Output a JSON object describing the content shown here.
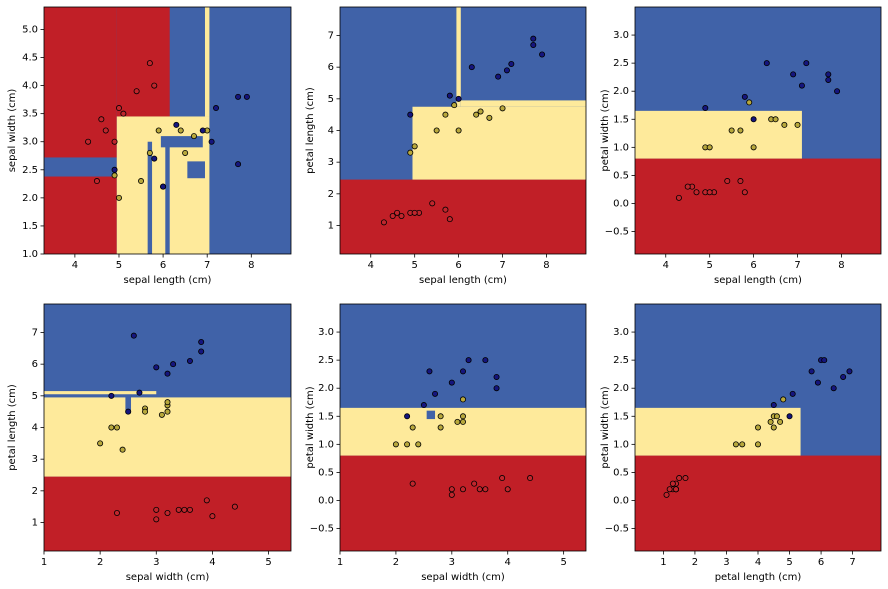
{
  "chart_data": [
    {
      "type": "scatter",
      "xlabel": "sepal length (cm)",
      "ylabel": "sepal width (cm)",
      "xlim": [
        3.3,
        8.9
      ],
      "ylim": [
        1.0,
        5.4
      ],
      "xticks": [
        4,
        5,
        6,
        7,
        8
      ],
      "yticks": [
        {
          "value": 1,
          "label": "1.0"
        },
        1.5,
        {
          "value": 2,
          "label": "2.0"
        },
        2.5,
        {
          "value": 3,
          "label": "3.0"
        },
        3.5,
        {
          "value": 4,
          "label": "4.0"
        },
        4.5,
        {
          "value": 5,
          "label": "5.0"
        }
      ],
      "regions": [
        {
          "xlim": [
            3.3,
            8.9
          ],
          "ylim": [
            1.0,
            5.4
          ],
          "color": "#4062a8"
        },
        {
          "xlim": [
            3.3,
            4.95
          ],
          "ylim": [
            1.0,
            5.4
          ],
          "color": "#c11f27"
        },
        {
          "xlim": [
            3.3,
            4.95
          ],
          "ylim": [
            2.38,
            2.72
          ],
          "color": "#4062a8"
        },
        {
          "xlim": [
            4.95,
            6.15
          ],
          "ylim": [
            3.45,
            5.4
          ],
          "color": "#c11f27"
        },
        {
          "xlim": [
            4.95,
            7.05
          ],
          "ylim": [
            1.0,
            3.45
          ],
          "color": "#feea9b"
        },
        {
          "xlim": [
            6.95,
            7.05
          ],
          "ylim": [
            3.45,
            5.4
          ],
          "color": "#feea9b"
        },
        {
          "xlim": [
            5.65,
            5.75
          ],
          "ylim": [
            1.0,
            3.0
          ],
          "color": "#4062a8"
        },
        {
          "xlim": [
            6.05,
            6.15
          ],
          "ylim": [
            1.0,
            3.0
          ],
          "color": "#4062a8"
        },
        {
          "xlim": [
            6.55,
            6.95
          ],
          "ylim": [
            2.35,
            2.65
          ],
          "color": "#4062a8"
        },
        {
          "xlim": [
            5.95,
            6.9
          ],
          "ylim": [
            2.9,
            3.1
          ],
          "color": "#4062a8"
        }
      ],
      "series": [
        {
          "color": "#c0262d",
          "x": [
            5.1,
            4.9,
            4.7,
            5.0,
            5.4,
            4.6,
            5.7,
            4.3,
            5.8,
            4.5
          ],
          "y": [
            3.5,
            3.0,
            3.2,
            3.6,
            3.9,
            3.4,
            4.4,
            3.0,
            4.0,
            2.3
          ]
        },
        {
          "color": "#b8a83c",
          "x": [
            7.0,
            6.4,
            5.5,
            6.5,
            5.7,
            4.9,
            5.0,
            6.0,
            6.7,
            5.9
          ],
          "y": [
            3.2,
            3.2,
            2.3,
            2.8,
            2.8,
            2.4,
            2.0,
            2.2,
            3.1,
            3.2
          ]
        },
        {
          "color": "#15157e",
          "x": [
            6.3,
            5.8,
            7.1,
            7.7,
            4.9,
            7.9,
            6.0,
            7.2,
            6.9,
            7.7
          ],
          "y": [
            3.3,
            2.7,
            3.0,
            3.8,
            2.5,
            3.8,
            2.2,
            3.6,
            3.2,
            2.6
          ]
        }
      ]
    },
    {
      "type": "scatter",
      "xlabel": "sepal length (cm)",
      "ylabel": "petal length (cm)",
      "xlim": [
        3.3,
        8.9
      ],
      "ylim": [
        0.1,
        7.9
      ],
      "xticks": [
        4,
        5,
        6,
        7,
        8
      ],
      "yticks": [
        1,
        2,
        3,
        4,
        5,
        6,
        7
      ],
      "regions": [
        {
          "xlim": [
            3.3,
            8.9
          ],
          "ylim": [
            0.1,
            7.9
          ],
          "color": "#4062a8"
        },
        {
          "xlim": [
            3.3,
            8.9
          ],
          "ylim": [
            0.1,
            2.45
          ],
          "color": "#c11f27"
        },
        {
          "xlim": [
            4.95,
            8.9
          ],
          "ylim": [
            2.45,
            4.75
          ],
          "color": "#feea9b"
        },
        {
          "xlim": [
            6.05,
            8.9
          ],
          "ylim": [
            4.75,
            4.95
          ],
          "color": "#feea9b"
        },
        {
          "xlim": [
            5.95,
            6.05
          ],
          "ylim": [
            4.75,
            7.9
          ],
          "color": "#feea9b"
        }
      ],
      "series": [
        {
          "color": "#c0262d",
          "x": [
            5.1,
            4.9,
            4.7,
            5.0,
            5.4,
            4.6,
            5.7,
            4.3,
            5.8,
            4.5
          ],
          "y": [
            1.4,
            1.4,
            1.3,
            1.4,
            1.7,
            1.4,
            1.5,
            1.1,
            1.2,
            1.3
          ]
        },
        {
          "color": "#b8a83c",
          "x": [
            7.0,
            6.4,
            5.5,
            6.5,
            5.7,
            4.9,
            5.0,
            6.0,
            6.7,
            5.9
          ],
          "y": [
            4.7,
            4.5,
            4.0,
            4.6,
            4.5,
            3.3,
            3.5,
            4.0,
            4.4,
            4.8
          ]
        },
        {
          "color": "#15157e",
          "x": [
            6.3,
            5.8,
            7.1,
            7.7,
            4.9,
            7.9,
            6.0,
            7.2,
            6.9,
            7.7
          ],
          "y": [
            6.0,
            5.1,
            5.9,
            6.7,
            4.5,
            6.4,
            5.0,
            6.1,
            5.7,
            6.9
          ]
        }
      ]
    },
    {
      "type": "scatter",
      "xlabel": "sepal length (cm)",
      "ylabel": "petal width (cm)",
      "xlim": [
        3.3,
        8.9
      ],
      "ylim": [
        -0.9,
        3.5
      ],
      "xticks": [
        4,
        5,
        6,
        7,
        8
      ],
      "yticks": [
        {
          "value": -0.5,
          "label": "−0.5"
        },
        {
          "value": 0,
          "label": "0.0"
        },
        0.5,
        {
          "value": 1,
          "label": "1.0"
        },
        1.5,
        {
          "value": 2,
          "label": "2.0"
        },
        2.5,
        {
          "value": 3,
          "label": "3.0"
        }
      ],
      "regions": [
        {
          "xlim": [
            3.3,
            8.9
          ],
          "ylim": [
            -0.9,
            3.5
          ],
          "color": "#4062a8"
        },
        {
          "xlim": [
            3.3,
            8.9
          ],
          "ylim": [
            -0.9,
            0.8
          ],
          "color": "#c11f27"
        },
        {
          "xlim": [
            3.3,
            7.1
          ],
          "ylim": [
            0.8,
            1.65
          ],
          "color": "#feea9b"
        }
      ],
      "series": [
        {
          "color": "#c0262d",
          "x": [
            5.1,
            4.9,
            4.7,
            5.0,
            5.4,
            4.6,
            5.7,
            4.3,
            5.8,
            4.5
          ],
          "y": [
            0.2,
            0.2,
            0.2,
            0.2,
            0.4,
            0.3,
            0.4,
            0.1,
            0.2,
            0.3
          ]
        },
        {
          "color": "#b8a83c",
          "x": [
            7.0,
            6.4,
            5.5,
            6.5,
            5.7,
            4.9,
            5.0,
            6.0,
            6.7,
            5.9
          ],
          "y": [
            1.4,
            1.5,
            1.3,
            1.5,
            1.3,
            1.0,
            1.0,
            1.0,
            1.4,
            1.8
          ]
        },
        {
          "color": "#15157e",
          "x": [
            6.3,
            5.8,
            7.1,
            7.7,
            4.9,
            7.9,
            6.0,
            7.2,
            6.9,
            7.7
          ],
          "y": [
            2.5,
            1.9,
            2.1,
            2.2,
            1.7,
            2.0,
            1.5,
            2.5,
            2.3,
            2.3
          ]
        }
      ]
    },
    {
      "type": "scatter",
      "xlabel": "sepal width (cm)",
      "ylabel": "petal length (cm)",
      "xlim": [
        1.0,
        5.4
      ],
      "ylim": [
        0.1,
        7.9
      ],
      "xticks": [
        1,
        2,
        3,
        4,
        5
      ],
      "yticks": [
        1,
        2,
        3,
        4,
        5,
        6,
        7
      ],
      "regions": [
        {
          "xlim": [
            1.0,
            5.4
          ],
          "ylim": [
            0.1,
            7.9
          ],
          "color": "#4062a8"
        },
        {
          "xlim": [
            1.0,
            5.4
          ],
          "ylim": [
            0.1,
            2.45
          ],
          "color": "#c11f27"
        },
        {
          "xlim": [
            1.0,
            5.4
          ],
          "ylim": [
            2.45,
            4.95
          ],
          "color": "#feea9b"
        },
        {
          "xlim": [
            1.0,
            3.0
          ],
          "ylim": [
            5.05,
            5.15
          ],
          "color": "#feea9b"
        },
        {
          "xlim": [
            2.45,
            2.55
          ],
          "ylim": [
            4.45,
            5.0
          ],
          "color": "#4062a8"
        }
      ],
      "series": [
        {
          "color": "#c0262d",
          "x": [
            3.5,
            3.0,
            3.2,
            3.6,
            3.9,
            3.4,
            4.4,
            3.0,
            4.0,
            2.3
          ],
          "y": [
            1.4,
            1.4,
            1.3,
            1.4,
            1.7,
            1.4,
            1.5,
            1.1,
            1.2,
            1.3
          ]
        },
        {
          "color": "#b8a83c",
          "x": [
            3.2,
            3.2,
            2.3,
            2.8,
            2.8,
            2.4,
            2.0,
            2.2,
            3.1,
            3.2
          ],
          "y": [
            4.7,
            4.5,
            4.0,
            4.6,
            4.5,
            3.3,
            3.5,
            4.0,
            4.4,
            4.8
          ]
        },
        {
          "color": "#15157e",
          "x": [
            3.3,
            2.7,
            3.0,
            3.8,
            2.5,
            3.8,
            2.2,
            3.6,
            3.2,
            2.6
          ],
          "y": [
            6.0,
            5.1,
            5.9,
            6.7,
            4.5,
            6.4,
            5.0,
            6.1,
            5.7,
            6.9
          ]
        }
      ]
    },
    {
      "type": "scatter",
      "xlabel": "sepal width (cm)",
      "ylabel": "petal width (cm)",
      "xlim": [
        1.0,
        5.4
      ],
      "ylim": [
        -0.9,
        3.5
      ],
      "xticks": [
        1,
        2,
        3,
        4,
        5
      ],
      "yticks": [
        {
          "value": -0.5,
          "label": "−0.5"
        },
        {
          "value": 0,
          "label": "0.0"
        },
        0.5,
        {
          "value": 1,
          "label": "1.0"
        },
        1.5,
        {
          "value": 2,
          "label": "2.0"
        },
        2.5,
        {
          "value": 3,
          "label": "3.0"
        }
      ],
      "regions": [
        {
          "xlim": [
            1.0,
            5.4
          ],
          "ylim": [
            -0.9,
            3.5
          ],
          "color": "#4062a8"
        },
        {
          "xlim": [
            1.0,
            5.4
          ],
          "ylim": [
            -0.9,
            0.8
          ],
          "color": "#c11f27"
        },
        {
          "xlim": [
            1.0,
            5.4
          ],
          "ylim": [
            0.8,
            1.65
          ],
          "color": "#feea9b"
        },
        {
          "xlim": [
            2.55,
            2.7
          ],
          "ylim": [
            1.45,
            1.6
          ],
          "color": "#4062a8"
        }
      ],
      "series": [
        {
          "color": "#c0262d",
          "x": [
            3.5,
            3.0,
            3.2,
            3.6,
            3.9,
            3.4,
            4.4,
            3.0,
            4.0,
            2.3
          ],
          "y": [
            0.2,
            0.2,
            0.2,
            0.2,
            0.4,
            0.3,
            0.4,
            0.1,
            0.2,
            0.3
          ]
        },
        {
          "color": "#b8a83c",
          "x": [
            3.2,
            3.2,
            2.3,
            2.8,
            2.8,
            2.4,
            2.0,
            2.2,
            3.1,
            3.2
          ],
          "y": [
            1.4,
            1.5,
            1.3,
            1.5,
            1.3,
            1.0,
            1.0,
            1.0,
            1.4,
            1.8
          ]
        },
        {
          "color": "#15157e",
          "x": [
            3.3,
            2.7,
            3.0,
            3.8,
            2.5,
            3.8,
            2.2,
            3.6,
            3.2,
            2.6
          ],
          "y": [
            2.5,
            1.9,
            2.1,
            2.2,
            1.7,
            2.0,
            1.5,
            2.5,
            2.3,
            2.3
          ]
        }
      ]
    },
    {
      "type": "scatter",
      "xlabel": "petal length (cm)",
      "ylabel": "petal width (cm)",
      "xlim": [
        0.1,
        7.9
      ],
      "ylim": [
        -0.9,
        3.5
      ],
      "xticks": [
        1,
        2,
        3,
        4,
        5,
        6,
        7
      ],
      "yticks": [
        {
          "value": -0.5,
          "label": "−0.5"
        },
        {
          "value": 0,
          "label": "0.0"
        },
        0.5,
        {
          "value": 1,
          "label": "1.0"
        },
        1.5,
        {
          "value": 2,
          "label": "2.0"
        },
        2.5,
        {
          "value": 3,
          "label": "3.0"
        }
      ],
      "regions": [
        {
          "xlim": [
            0.1,
            7.9
          ],
          "ylim": [
            -0.9,
            3.5
          ],
          "color": "#4062a8"
        },
        {
          "xlim": [
            0.1,
            7.9
          ],
          "ylim": [
            -0.9,
            0.8
          ],
          "color": "#c11f27"
        },
        {
          "xlim": [
            0.1,
            5.35
          ],
          "ylim": [
            0.8,
            1.65
          ],
          "color": "#feea9b"
        }
      ],
      "series": [
        {
          "color": "#c0262d",
          "x": [
            1.4,
            1.4,
            1.3,
            1.4,
            1.7,
            1.4,
            1.5,
            1.1,
            1.2,
            1.3
          ],
          "y": [
            0.2,
            0.2,
            0.2,
            0.2,
            0.4,
            0.3,
            0.4,
            0.1,
            0.2,
            0.3
          ]
        },
        {
          "color": "#b8a83c",
          "x": [
            4.7,
            4.5,
            4.0,
            4.6,
            4.5,
            3.3,
            3.5,
            4.0,
            4.4,
            4.8
          ],
          "y": [
            1.4,
            1.5,
            1.3,
            1.5,
            1.3,
            1.0,
            1.0,
            1.0,
            1.4,
            1.8
          ]
        },
        {
          "color": "#15157e",
          "x": [
            6.0,
            5.1,
            5.9,
            6.7,
            4.5,
            6.4,
            5.0,
            6.1,
            5.7,
            6.9
          ],
          "y": [
            2.5,
            1.9,
            2.1,
            2.2,
            1.7,
            2.0,
            1.5,
            2.5,
            2.3,
            2.3
          ]
        }
      ]
    }
  ]
}
